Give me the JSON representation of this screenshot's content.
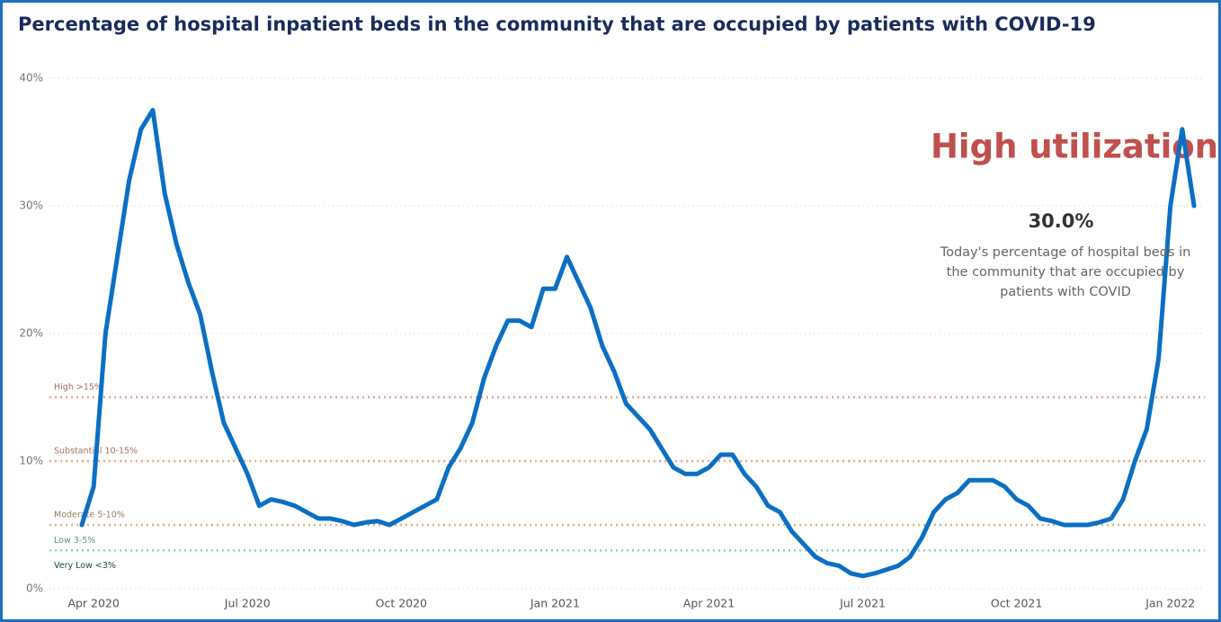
{
  "chart_data": {
    "type": "line",
    "title": "Percentage of  hospital  inpatient beds in  the community  that are  occupied by  patients with  COVID-19",
    "categories": [
      null,
      "Apr 2020",
      null,
      null,
      null,
      null,
      null,
      null,
      null,
      null,
      null,
      null,
      null,
      null,
      "Jul 2020",
      null,
      null,
      null,
      null,
      null,
      null,
      null,
      null,
      null,
      null,
      null,
      null,
      "Oct 2020",
      null,
      null,
      null,
      null,
      null,
      null,
      null,
      null,
      null,
      null,
      null,
      null,
      "Jan 2021",
      null,
      null,
      null,
      null,
      null,
      null,
      null,
      null,
      null,
      null,
      null,
      null,
      "Apr 2021",
      null,
      null,
      null,
      null,
      null,
      null,
      null,
      null,
      null,
      null,
      null,
      null,
      "Jul 2021",
      null,
      null,
      null,
      null,
      null,
      null,
      null,
      null,
      null,
      null,
      null,
      null,
      "Oct 2021",
      null,
      null,
      null,
      null,
      null,
      null,
      null,
      null,
      null,
      null,
      null,
      null,
      "Jan 2022",
      null,
      null
    ],
    "series": [
      {
        "color": "#0b6fc4",
        "values": [
          5,
          8,
          20,
          26,
          32,
          36,
          37.5,
          31,
          27,
          24,
          21.5,
          17,
          13,
          11,
          9,
          6.5,
          7,
          6.8,
          6.5,
          6,
          5.5,
          5.5,
          5.3,
          5,
          5.2,
          5.3,
          5,
          5.5,
          6,
          6.5,
          7,
          9.5,
          11,
          13,
          16.5,
          19,
          21,
          21,
          20.5,
          23.5,
          23.5,
          26,
          24,
          22,
          19,
          17,
          14.5,
          13.5,
          12.5,
          11,
          9.5,
          9,
          9,
          9.5,
          10.5,
          10.5,
          9,
          8,
          6.5,
          6,
          4.5,
          3.5,
          2.5,
          2,
          1.8,
          1.2,
          1,
          1.2,
          1.5,
          1.8,
          2.5,
          4,
          6,
          7,
          7.5,
          8.5,
          8.5,
          8.5,
          8,
          7,
          6.5,
          5.5,
          5.3,
          5,
          5,
          5,
          5.2,
          5.5,
          7,
          10,
          12.5,
          18,
          30,
          36,
          30
        ]
      }
    ],
    "ylim": [
      0,
      40
    ],
    "yticks": [
      {
        "value": 0,
        "label": "0%"
      },
      {
        "value": 10,
        "label": "10%"
      },
      {
        "value": 20,
        "label": "20%"
      },
      {
        "value": 30,
        "label": "30%"
      },
      {
        "value": 40,
        "label": "40%"
      }
    ],
    "grid": true,
    "thresholds": [
      {
        "label": "High >15%",
        "value": 15,
        "color": "#e6a0a0"
      },
      {
        "label": "Substantial 10-15%",
        "value": 10,
        "color": "#eba88f"
      },
      {
        "label": "Moderate 5-10%",
        "value": 5,
        "color": "#d4b48a"
      },
      {
        "label": "Low 3-5%",
        "value": 3,
        "color": "#8fd0cc"
      },
      {
        "label": "Very Low <3%",
        "color": "#2a6a5a"
      }
    ],
    "annotation": {
      "headline": "High utilization",
      "current": "30.0%",
      "description": "Today's percentage of  hospital beds in the community  that are  occupied by  patients with  COVID"
    }
  }
}
